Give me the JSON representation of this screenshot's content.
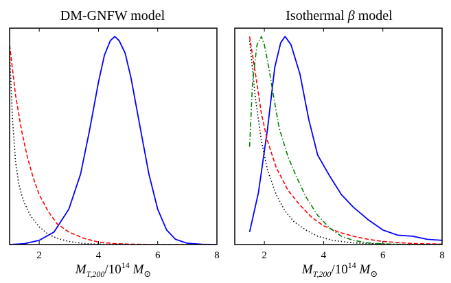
{
  "chart_data": [
    {
      "type": "line",
      "title": "DM-GNFW model",
      "xlabel": "M_{T,200}/10^{14} M_⊙",
      "xlim": [
        1,
        8
      ],
      "ylim": [
        0,
        1.04
      ],
      "xticks": [
        "2",
        "4",
        "6",
        "8"
      ],
      "yticks_shown": false,
      "series": [
        {
          "color": "#0000ff",
          "style": "solid",
          "x": [
            1.0,
            1.5,
            2.0,
            2.5,
            3.0,
            3.4,
            3.7,
            4.0,
            4.2,
            4.4,
            4.55,
            4.7,
            4.9,
            5.1,
            5.4,
            5.7,
            6.0,
            6.3,
            6.6,
            7.0,
            7.5,
            8.0
          ],
          "y": [
            0.0,
            0.004,
            0.02,
            0.06,
            0.17,
            0.34,
            0.55,
            0.78,
            0.91,
            0.98,
            1.0,
            0.98,
            0.92,
            0.8,
            0.57,
            0.34,
            0.17,
            0.07,
            0.025,
            0.006,
            0.001,
            0.0
          ]
        },
        {
          "color": "#ff0000",
          "style": "dashed",
          "x": [
            1.0,
            1.2,
            1.4,
            1.6,
            1.8,
            2.0,
            2.3,
            2.6,
            3.0,
            3.5,
            4.0,
            4.5,
            5.0,
            6.0,
            7.0,
            8.0
          ],
          "y": [
            0.96,
            0.72,
            0.55,
            0.42,
            0.32,
            0.24,
            0.16,
            0.1,
            0.06,
            0.03,
            0.012,
            0.005,
            0.002,
            0.0,
            0.0,
            0.0
          ]
        },
        {
          "color": "#000000",
          "style": "dotted",
          "x": [
            1.0,
            1.1,
            1.2,
            1.3,
            1.4,
            1.5,
            1.7,
            2.0,
            2.3,
            2.6,
            3.0,
            3.5,
            4.0,
            5.0,
            6.0,
            8.0
          ],
          "y": [
            0.92,
            0.6,
            0.4,
            0.3,
            0.24,
            0.2,
            0.14,
            0.085,
            0.05,
            0.03,
            0.015,
            0.005,
            0.002,
            0.0,
            0.0,
            0.0
          ]
        }
      ]
    },
    {
      "type": "line",
      "title": "Isothermal β model",
      "xlabel": "M_{T,200}/10^{14} M_⊙",
      "xlim": [
        1,
        8
      ],
      "ylim": [
        0,
        1.04
      ],
      "xticks": [
        "2",
        "4",
        "6",
        "8"
      ],
      "yticks_shown": false,
      "series": [
        {
          "color": "#0000ff",
          "style": "solid",
          "x": [
            1.5,
            1.8,
            2.1,
            2.35,
            2.55,
            2.7,
            2.9,
            3.2,
            3.5,
            3.8,
            4.2,
            4.6,
            5.0,
            5.5,
            6.0,
            6.5,
            7.0,
            7.5,
            8.0
          ],
          "y": [
            0.06,
            0.25,
            0.55,
            0.85,
            0.97,
            1.0,
            0.96,
            0.82,
            0.6,
            0.43,
            0.33,
            0.24,
            0.18,
            0.12,
            0.07,
            0.045,
            0.04,
            0.025,
            0.02
          ]
        },
        {
          "color": "#ff0000",
          "style": "dashed",
          "x": [
            1.5,
            1.7,
            1.9,
            2.1,
            2.4,
            2.8,
            3.2,
            3.6,
            4.0,
            4.5,
            5.0,
            5.5,
            6.0,
            7.0,
            8.0
          ],
          "y": [
            1.0,
            0.82,
            0.63,
            0.5,
            0.37,
            0.26,
            0.19,
            0.13,
            0.09,
            0.06,
            0.04,
            0.025,
            0.015,
            0.005,
            0.002
          ]
        },
        {
          "color": "#000000",
          "style": "dotted",
          "x": [
            1.5,
            1.7,
            1.9,
            2.1,
            2.4,
            2.7,
            3.0,
            3.4,
            3.8,
            4.3,
            5.0,
            6.0,
            8.0
          ],
          "y": [
            0.98,
            0.7,
            0.5,
            0.36,
            0.24,
            0.16,
            0.11,
            0.07,
            0.04,
            0.02,
            0.008,
            0.002,
            0.0
          ]
        },
        {
          "color": "#008000",
          "style": "dashdot",
          "x": [
            1.5,
            1.6,
            1.75,
            1.9,
            2.0,
            2.15,
            2.3,
            2.5,
            2.8,
            3.1,
            3.4,
            3.8,
            4.2,
            4.6,
            5.0,
            5.5,
            6.0,
            7.0,
            8.0
          ],
          "y": [
            0.47,
            0.78,
            0.96,
            1.0,
            0.96,
            0.85,
            0.72,
            0.56,
            0.42,
            0.32,
            0.23,
            0.14,
            0.08,
            0.04,
            0.02,
            0.008,
            0.003,
            0.0,
            0.0
          ]
        }
      ]
    }
  ]
}
